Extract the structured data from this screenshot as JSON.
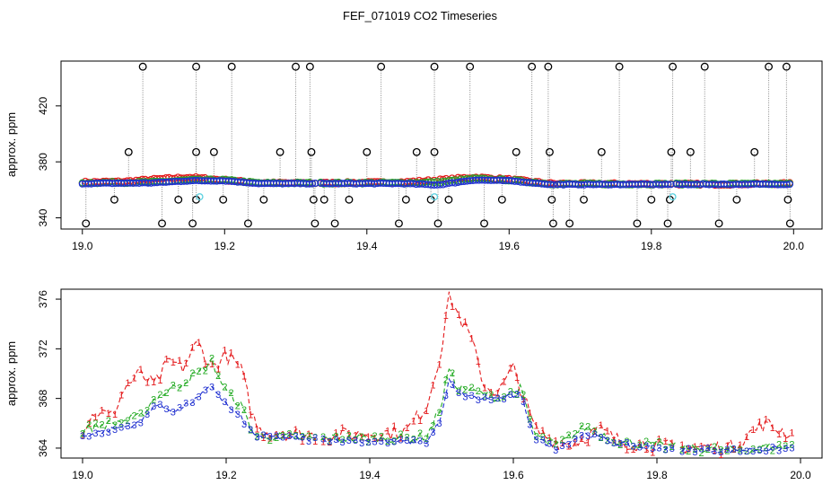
{
  "chart_data": [
    {
      "type": "scatter",
      "title": "FEF_071019  CO2 Timeseries",
      "xlabel": "",
      "ylabel": "approx. ppm",
      "xlim": [
        18.97,
        20.04
      ],
      "ylim": [
        332,
        452
      ],
      "xticks": [
        19.0,
        19.2,
        19.4,
        19.6,
        19.8,
        20.0
      ],
      "xtick_labels": [
        "19.0",
        "19.2",
        "19.4",
        "19.6",
        "19.8",
        "20.0"
      ],
      "yticks": [
        340,
        380,
        420
      ],
      "ytick_labels": [
        "340",
        "380",
        "420"
      ],
      "segments": [
        [
          19.0,
          19.328
        ],
        [
          19.335,
          19.665
        ],
        [
          19.668,
          19.83
        ],
        [
          19.835,
          19.995
        ]
      ],
      "series": [
        {
          "name": "red",
          "color": "#e41a1c",
          "anchors": [
            [
              19.0,
              365.5
            ],
            [
              19.06,
              366
            ],
            [
              19.1,
              367.5
            ],
            [
              19.15,
              369
            ],
            [
              19.2,
              367
            ],
            [
              19.25,
              365
            ],
            [
              19.33,
              364.8
            ],
            [
              19.45,
              365.5
            ],
            [
              19.5,
              367
            ],
            [
              19.55,
              369
            ],
            [
              19.6,
              367.5
            ],
            [
              19.66,
              364.5
            ],
            [
              19.75,
              364.3
            ],
            [
              19.8,
              364.2
            ],
            [
              19.9,
              364
            ],
            [
              19.99,
              364.5
            ]
          ]
        },
        {
          "name": "green",
          "color": "#2ca02c",
          "anchors": [
            [
              19.0,
              365
            ],
            [
              19.1,
              365.5
            ],
            [
              19.15,
              367
            ],
            [
              19.2,
              367
            ],
            [
              19.25,
              364.8
            ],
            [
              19.45,
              365
            ],
            [
              19.5,
              365.5
            ],
            [
              19.55,
              368
            ],
            [
              19.6,
              367
            ],
            [
              19.66,
              364.2
            ],
            [
              19.99,
              364.2
            ]
          ]
        },
        {
          "name": "blue",
          "color": "#1f2fd0",
          "anchors": [
            [
              19.0,
              364.5
            ],
            [
              19.1,
              365
            ],
            [
              19.15,
              366.5
            ],
            [
              19.2,
              366.5
            ],
            [
              19.25,
              364.5
            ],
            [
              19.45,
              364.5
            ],
            [
              19.5,
              363.5
            ],
            [
              19.55,
              367
            ],
            [
              19.6,
              366.5
            ],
            [
              19.66,
              363.8
            ],
            [
              19.99,
              364
            ]
          ]
        },
        {
          "name": "cyan",
          "color": "#5bd1e0",
          "points": [
            [
              19.165,
              355
            ],
            [
              19.495,
              355
            ],
            [
              19.83,
              355
            ]
          ]
        }
      ],
      "spikes": [
        {
          "x": 19.005,
          "y": 336
        },
        {
          "x": 19.045,
          "y": 353
        },
        {
          "x": 19.065,
          "y": 387
        },
        {
          "x": 19.085,
          "y": 448
        },
        {
          "x": 19.112,
          "y": 336
        },
        {
          "x": 19.135,
          "y": 353
        },
        {
          "x": 19.155,
          "y": 336
        },
        {
          "x": 19.16,
          "y": 353
        },
        {
          "x": 19.16,
          "y": 387
        },
        {
          "x": 19.16,
          "y": 448
        },
        {
          "x": 19.185,
          "y": 387
        },
        {
          "x": 19.198,
          "y": 353
        },
        {
          "x": 19.21,
          "y": 448
        },
        {
          "x": 19.233,
          "y": 336
        },
        {
          "x": 19.255,
          "y": 353
        },
        {
          "x": 19.278,
          "y": 387
        },
        {
          "x": 19.3,
          "y": 448
        },
        {
          "x": 19.32,
          "y": 448
        },
        {
          "x": 19.322,
          "y": 387
        },
        {
          "x": 19.325,
          "y": 353
        },
        {
          "x": 19.327,
          "y": 336
        },
        {
          "x": 19.34,
          "y": 353
        },
        {
          "x": 19.355,
          "y": 336
        },
        {
          "x": 19.375,
          "y": 353
        },
        {
          "x": 19.4,
          "y": 387
        },
        {
          "x": 19.42,
          "y": 448
        },
        {
          "x": 19.445,
          "y": 336
        },
        {
          "x": 19.455,
          "y": 353
        },
        {
          "x": 19.47,
          "y": 387
        },
        {
          "x": 19.49,
          "y": 353
        },
        {
          "x": 19.495,
          "y": 387
        },
        {
          "x": 19.495,
          "y": 448
        },
        {
          "x": 19.5,
          "y": 336
        },
        {
          "x": 19.515,
          "y": 353
        },
        {
          "x": 19.545,
          "y": 448
        },
        {
          "x": 19.565,
          "y": 336
        },
        {
          "x": 19.59,
          "y": 353
        },
        {
          "x": 19.61,
          "y": 387
        },
        {
          "x": 19.632,
          "y": 448
        },
        {
          "x": 19.655,
          "y": 448
        },
        {
          "x": 19.657,
          "y": 387
        },
        {
          "x": 19.66,
          "y": 353
        },
        {
          "x": 19.662,
          "y": 336
        },
        {
          "x": 19.685,
          "y": 336
        },
        {
          "x": 19.705,
          "y": 353
        },
        {
          "x": 19.73,
          "y": 387
        },
        {
          "x": 19.755,
          "y": 448
        },
        {
          "x": 19.78,
          "y": 336
        },
        {
          "x": 19.8,
          "y": 353
        },
        {
          "x": 19.823,
          "y": 336
        },
        {
          "x": 19.826,
          "y": 353
        },
        {
          "x": 19.828,
          "y": 387
        },
        {
          "x": 19.83,
          "y": 448
        },
        {
          "x": 19.855,
          "y": 387
        },
        {
          "x": 19.875,
          "y": 448
        },
        {
          "x": 19.895,
          "y": 336
        },
        {
          "x": 19.92,
          "y": 353
        },
        {
          "x": 19.945,
          "y": 387
        },
        {
          "x": 19.965,
          "y": 448
        },
        {
          "x": 19.99,
          "y": 448
        },
        {
          "x": 19.992,
          "y": 353
        },
        {
          "x": 19.995,
          "y": 336
        }
      ]
    },
    {
      "type": "line",
      "title": "",
      "xlabel": "",
      "ylabel": "approx. ppm",
      "xlim": [
        18.97,
        20.03
      ],
      "ylim": [
        363.2,
        376.8
      ],
      "xticks": [
        19.0,
        19.2,
        19.4,
        19.6,
        19.8,
        20.0
      ],
      "xtick_labels": [
        "19.0",
        "19.2",
        "19.4",
        "19.6",
        "19.8",
        "20.0"
      ],
      "yticks": [
        364,
        368,
        372,
        376
      ],
      "ytick_labels": [
        "364",
        "368",
        "372",
        "376"
      ],
      "segments": [
        [
          19.0,
          19.328
        ],
        [
          19.335,
          19.665
        ],
        [
          19.668,
          19.83
        ],
        [
          19.835,
          19.99
        ]
      ],
      "series": [
        {
          "name": "1",
          "marker": "1",
          "color": "#e41a1c",
          "anchors": [
            [
              19.0,
              365.5
            ],
            [
              19.02,
              367
            ],
            [
              19.04,
              366.5
            ],
            [
              19.06,
              369
            ],
            [
              19.08,
              370
            ],
            [
              19.1,
              369
            ],
            [
              19.12,
              371
            ],
            [
              19.14,
              370.5
            ],
            [
              19.16,
              372.5
            ],
            [
              19.18,
              370.5
            ],
            [
              19.2,
              371.5
            ],
            [
              19.22,
              370.5
            ],
            [
              19.235,
              367
            ],
            [
              19.245,
              365.4
            ],
            [
              19.33,
              365
            ],
            [
              19.45,
              365.3
            ],
            [
              19.48,
              367.5
            ],
            [
              19.5,
              372
            ],
            [
              19.51,
              376.5
            ],
            [
              19.525,
              374.5
            ],
            [
              19.54,
              373
            ],
            [
              19.56,
              369
            ],
            [
              19.58,
              368.5
            ],
            [
              19.6,
              370.5
            ],
            [
              19.63,
              365.5
            ],
            [
              19.66,
              364.5
            ],
            [
              19.68,
              364.3
            ],
            [
              19.72,
              365.5
            ],
            [
              19.75,
              364.5
            ],
            [
              19.8,
              364.2
            ],
            [
              19.9,
              364
            ],
            [
              19.95,
              366
            ],
            [
              19.99,
              365
            ]
          ]
        },
        {
          "name": "2",
          "marker": "2",
          "color": "#22aa22",
          "anchors": [
            [
              19.0,
              365.5
            ],
            [
              19.04,
              366
            ],
            [
              19.08,
              366.5
            ],
            [
              19.1,
              368
            ],
            [
              19.13,
              369
            ],
            [
              19.16,
              370
            ],
            [
              19.18,
              371
            ],
            [
              19.2,
              368.5
            ],
            [
              19.22,
              367.5
            ],
            [
              19.24,
              365
            ],
            [
              19.33,
              364.8
            ],
            [
              19.46,
              364.8
            ],
            [
              19.48,
              365
            ],
            [
              19.5,
              367.5
            ],
            [
              19.51,
              370.5
            ],
            [
              19.52,
              369
            ],
            [
              19.55,
              368.5
            ],
            [
              19.58,
              368
            ],
            [
              19.61,
              368.8
            ],
            [
              19.63,
              365
            ],
            [
              19.66,
              364.2
            ],
            [
              19.7,
              365.7
            ],
            [
              19.75,
              364.5
            ],
            [
              19.8,
              364.2
            ],
            [
              19.9,
              363.8
            ],
            [
              19.99,
              364.2
            ]
          ]
        },
        {
          "name": "3",
          "marker": "3",
          "color": "#1f2fd0",
          "anchors": [
            [
              19.0,
              365
            ],
            [
              19.04,
              365.5
            ],
            [
              19.08,
              366
            ],
            [
              19.1,
              367.5
            ],
            [
              19.13,
              367
            ],
            [
              19.16,
              368
            ],
            [
              19.18,
              369
            ],
            [
              19.2,
              367.5
            ],
            [
              19.22,
              366.5
            ],
            [
              19.24,
              365
            ],
            [
              19.33,
              364.7
            ],
            [
              19.46,
              364.5
            ],
            [
              19.48,
              364.5
            ],
            [
              19.5,
              366.5
            ],
            [
              19.51,
              369.5
            ],
            [
              19.52,
              368.5
            ],
            [
              19.55,
              368
            ],
            [
              19.58,
              368
            ],
            [
              19.61,
              368.3
            ],
            [
              19.63,
              364.8
            ],
            [
              19.66,
              364
            ],
            [
              19.7,
              365.2
            ],
            [
              19.75,
              364.3
            ],
            [
              19.8,
              364
            ],
            [
              19.9,
              363.8
            ],
            [
              19.99,
              364
            ]
          ]
        }
      ]
    }
  ]
}
